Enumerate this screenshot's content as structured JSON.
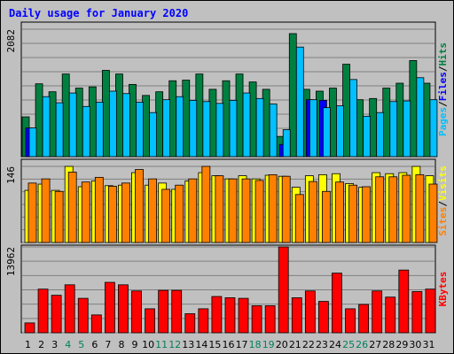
{
  "chart_data": {
    "type": "bar",
    "title": "Daily usage for January 2020",
    "title_color": "#0000ff",
    "background": "#c0c0c0",
    "days": [
      "1",
      "2",
      "3",
      "4",
      "5",
      "6",
      "7",
      "8",
      "9",
      "10",
      "11",
      "12",
      "13",
      "14",
      "15",
      "16",
      "17",
      "18",
      "19",
      "20",
      "21",
      "22",
      "23",
      "24",
      "25",
      "26",
      "27",
      "28",
      "29",
      "30",
      "31"
    ],
    "weekend_days": [
      "4",
      "5",
      "11",
      "12",
      "18",
      "19",
      "25",
      "26"
    ],
    "weekday_color": "#000000",
    "weekend_color": "#00805c",
    "panels": [
      {
        "max_label": "2082",
        "ylim": [
          0,
          2082
        ],
        "sep_label": "/",
        "sep_color": "#000000",
        "series": [
          {
            "name": "Hits",
            "color": "#008040",
            "values": [
              650,
              1190,
              1060,
              1350,
              1120,
              1140,
              1410,
              1350,
              1180,
              1000,
              1060,
              1240,
              1250,
              1350,
              1100,
              1240,
              1350,
              1220,
              1100,
              330,
              2010,
              1100,
              1070,
              1120,
              1510,
              930,
              950,
              1120,
              1200,
              1570,
              1200
            ]
          },
          {
            "name": "Files",
            "color": "#0000ff",
            "values": [
              470,
              0,
              0,
              0,
              0,
              0,
              0,
              0,
              0,
              0,
              0,
              0,
              0,
              0,
              0,
              0,
              0,
              0,
              0,
              200,
              0,
              930,
              920,
              0,
              0,
              0,
              0,
              0,
              0,
              0,
              0
            ]
          },
          {
            "name": "Pages",
            "color": "#00c0ff",
            "values": [
              470,
              980,
              880,
              1040,
              820,
              890,
              1070,
              1030,
              890,
              720,
              930,
              980,
              920,
              900,
              870,
              920,
              1040,
              950,
              860,
              440,
              1790,
              930,
              800,
              830,
              1260,
              660,
              720,
              900,
              910,
              1290,
              930
            ]
          }
        ]
      },
      {
        "max_label": "146",
        "ylim": [
          0,
          146
        ],
        "sep_label": "/",
        "sep_color": "#000000",
        "series": [
          {
            "name": "Visits",
            "color": "#ffff00",
            "values": [
              100,
              112,
              100,
              146,
              107,
              118,
              109,
              110,
              134,
              110,
              114,
              102,
              118,
              134,
              128,
              122,
              128,
              122,
              129,
              127,
              106,
              128,
              130,
              132,
              113,
              106,
              134,
              132,
              134,
              146,
              128
            ]
          },
          {
            "name": "Sites",
            "color": "#ff8000",
            "values": [
              114,
              122,
              98,
              135,
              116,
              125,
              108,
              114,
              140,
              122,
              102,
              110,
              122,
              147,
              128,
              122,
              122,
              119,
              130,
              127,
              92,
              117,
              98,
              116,
              110,
              107,
              126,
              126,
              129,
              130,
              112
            ]
          }
        ]
      },
      {
        "max_label": "13962",
        "ylim": [
          0,
          13962
        ],
        "series": [
          {
            "name": "KBytes",
            "color": "#ff0000",
            "values": [
              1600,
              7100,
              6100,
              7800,
              5600,
              2900,
              8200,
              7800,
              6800,
              3900,
              6900,
              6900,
              3100,
              3900,
              5900,
              5700,
              5600,
              4400,
              4400,
              13962,
              5700,
              6800,
              5100,
              9700,
              3900,
              4600,
              6800,
              5800,
              10200,
              6700,
              7100
            ]
          }
        ]
      }
    ]
  }
}
